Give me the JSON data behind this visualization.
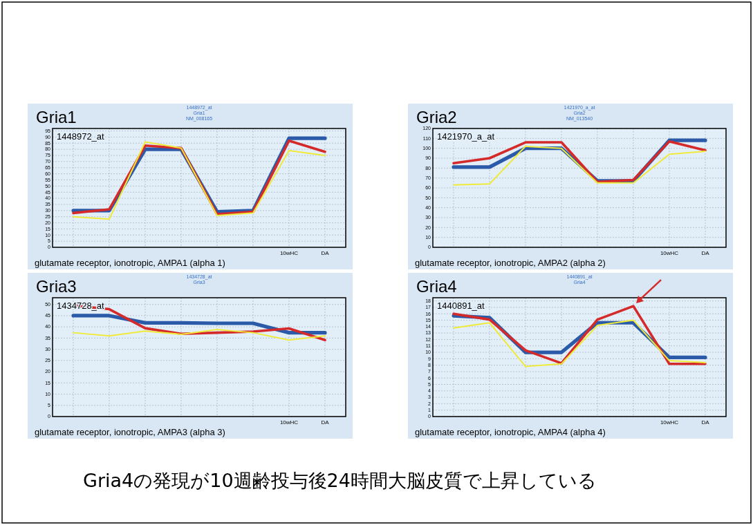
{
  "chart_data": [
    {
      "type": "line",
      "title": "Gria1",
      "subtitle": "1448972_at Gria1 NM_008165",
      "annotations": [
        "1448972_at",
        "glutamate receptor, ionotropic, AMPA1 (alpha 1)"
      ],
      "categories": [
        null,
        null,
        null,
        null,
        null,
        null,
        "10wHC",
        "DA"
      ],
      "ylim": [
        0,
        97
      ],
      "yticks": [
        0,
        5,
        10,
        15,
        20,
        25,
        30,
        35,
        40,
        45,
        50,
        55,
        60,
        65,
        70,
        75,
        80,
        85,
        90,
        95
      ],
      "grid": true,
      "marker": "none",
      "series": [
        {
          "color": "#2b5aa8",
          "values": [
            30,
            30,
            80,
            80,
            29,
            30,
            89,
            89
          ]
        },
        {
          "color": "#d42a2a",
          "values": [
            28,
            31,
            83,
            81,
            27,
            29,
            87,
            78
          ]
        },
        {
          "color": "#f0ea3a",
          "values": [
            25,
            23,
            86,
            81,
            26,
            28,
            79,
            75
          ]
        }
      ]
    },
    {
      "type": "line",
      "title": "Gria2",
      "subtitle": "1421970_a_at Gria2 NM_013540",
      "annotations": [
        "1421970_a_at",
        "glutamate receptor, ionotropic, AMPA2 (alpha 2)"
      ],
      "categories": [
        null,
        null,
        null,
        null,
        null,
        null,
        "10wHC",
        "DA"
      ],
      "ylim": [
        0,
        120
      ],
      "yticks": [
        0,
        10,
        20,
        30,
        40,
        50,
        60,
        70,
        80,
        90,
        100,
        110,
        120
      ],
      "grid": true,
      "marker": "none",
      "series": [
        {
          "color": "#2b5aa8",
          "values": [
            81,
            81,
            100,
            100,
            67,
            67,
            108,
            108
          ]
        },
        {
          "color": "#d42a2a",
          "values": [
            85,
            90,
            106,
            106,
            66,
            68,
            107,
            98
          ]
        },
        {
          "color": "#f0ea3a",
          "values": [
            63,
            64,
            102,
            100,
            65,
            65,
            94,
            97
          ]
        }
      ]
    },
    {
      "type": "line",
      "title": "Gria3",
      "subtitle": "1434728_at Gria3",
      "annotations": [
        "1434728_at",
        "glutamate receptor, ionotropic, AMPA3 (alpha 3)"
      ],
      "categories": [
        null,
        null,
        null,
        null,
        null,
        null,
        "10wHC",
        "DA"
      ],
      "ylim": [
        0,
        53
      ],
      "yticks": [
        0,
        5,
        10,
        15,
        20,
        25,
        30,
        35,
        40,
        45,
        50
      ],
      "grid": true,
      "marker": "none",
      "series": [
        {
          "color": "#2b5aa8",
          "values": [
            45,
            45,
            41.8,
            41.8,
            41.6,
            41.6,
            37.4,
            37.4
          ]
        },
        {
          "color": "#d42a2a",
          "values": [
            49.5,
            47.9,
            39.4,
            36.9,
            37.4,
            37.9,
            39.3,
            34.1
          ]
        },
        {
          "color": "#f0ea3a",
          "values": [
            37.4,
            36,
            38.1,
            36.7,
            38.8,
            37.4,
            34.1,
            36
          ]
        }
      ]
    },
    {
      "type": "line",
      "title": "Gria4",
      "subtitle": "1440891_at Gria4",
      "annotations": [
        "1440891_at",
        "glutamate receptor, ionotropic, AMPA4 (alpha 4)",
        "Gria4の発現が10週齢投与後24時間大脳皮質で上昇している"
      ],
      "categories": [
        null,
        null,
        null,
        null,
        null,
        null,
        "10wHC",
        "DA"
      ],
      "ylim": [
        0,
        18.5
      ],
      "yticks": [
        0,
        1,
        2,
        3,
        4,
        5,
        6,
        7,
        8,
        9,
        10,
        11,
        12,
        13,
        14,
        15,
        16,
        17,
        18
      ],
      "grid": true,
      "marker": "none",
      "series": [
        {
          "color": "#2b5aa8",
          "values": [
            15.7,
            15.4,
            10,
            10,
            14.6,
            14.6,
            9.2,
            9.2
          ]
        },
        {
          "color": "#d42a2a",
          "values": [
            16,
            15.1,
            10.3,
            8.3,
            15.1,
            17.2,
            8.2,
            8.2
          ]
        },
        {
          "color": "#f0ea3a",
          "values": [
            13.8,
            14.6,
            7.8,
            8.2,
            14.2,
            15,
            8.7,
            8.4
          ]
        }
      ]
    }
  ]
}
